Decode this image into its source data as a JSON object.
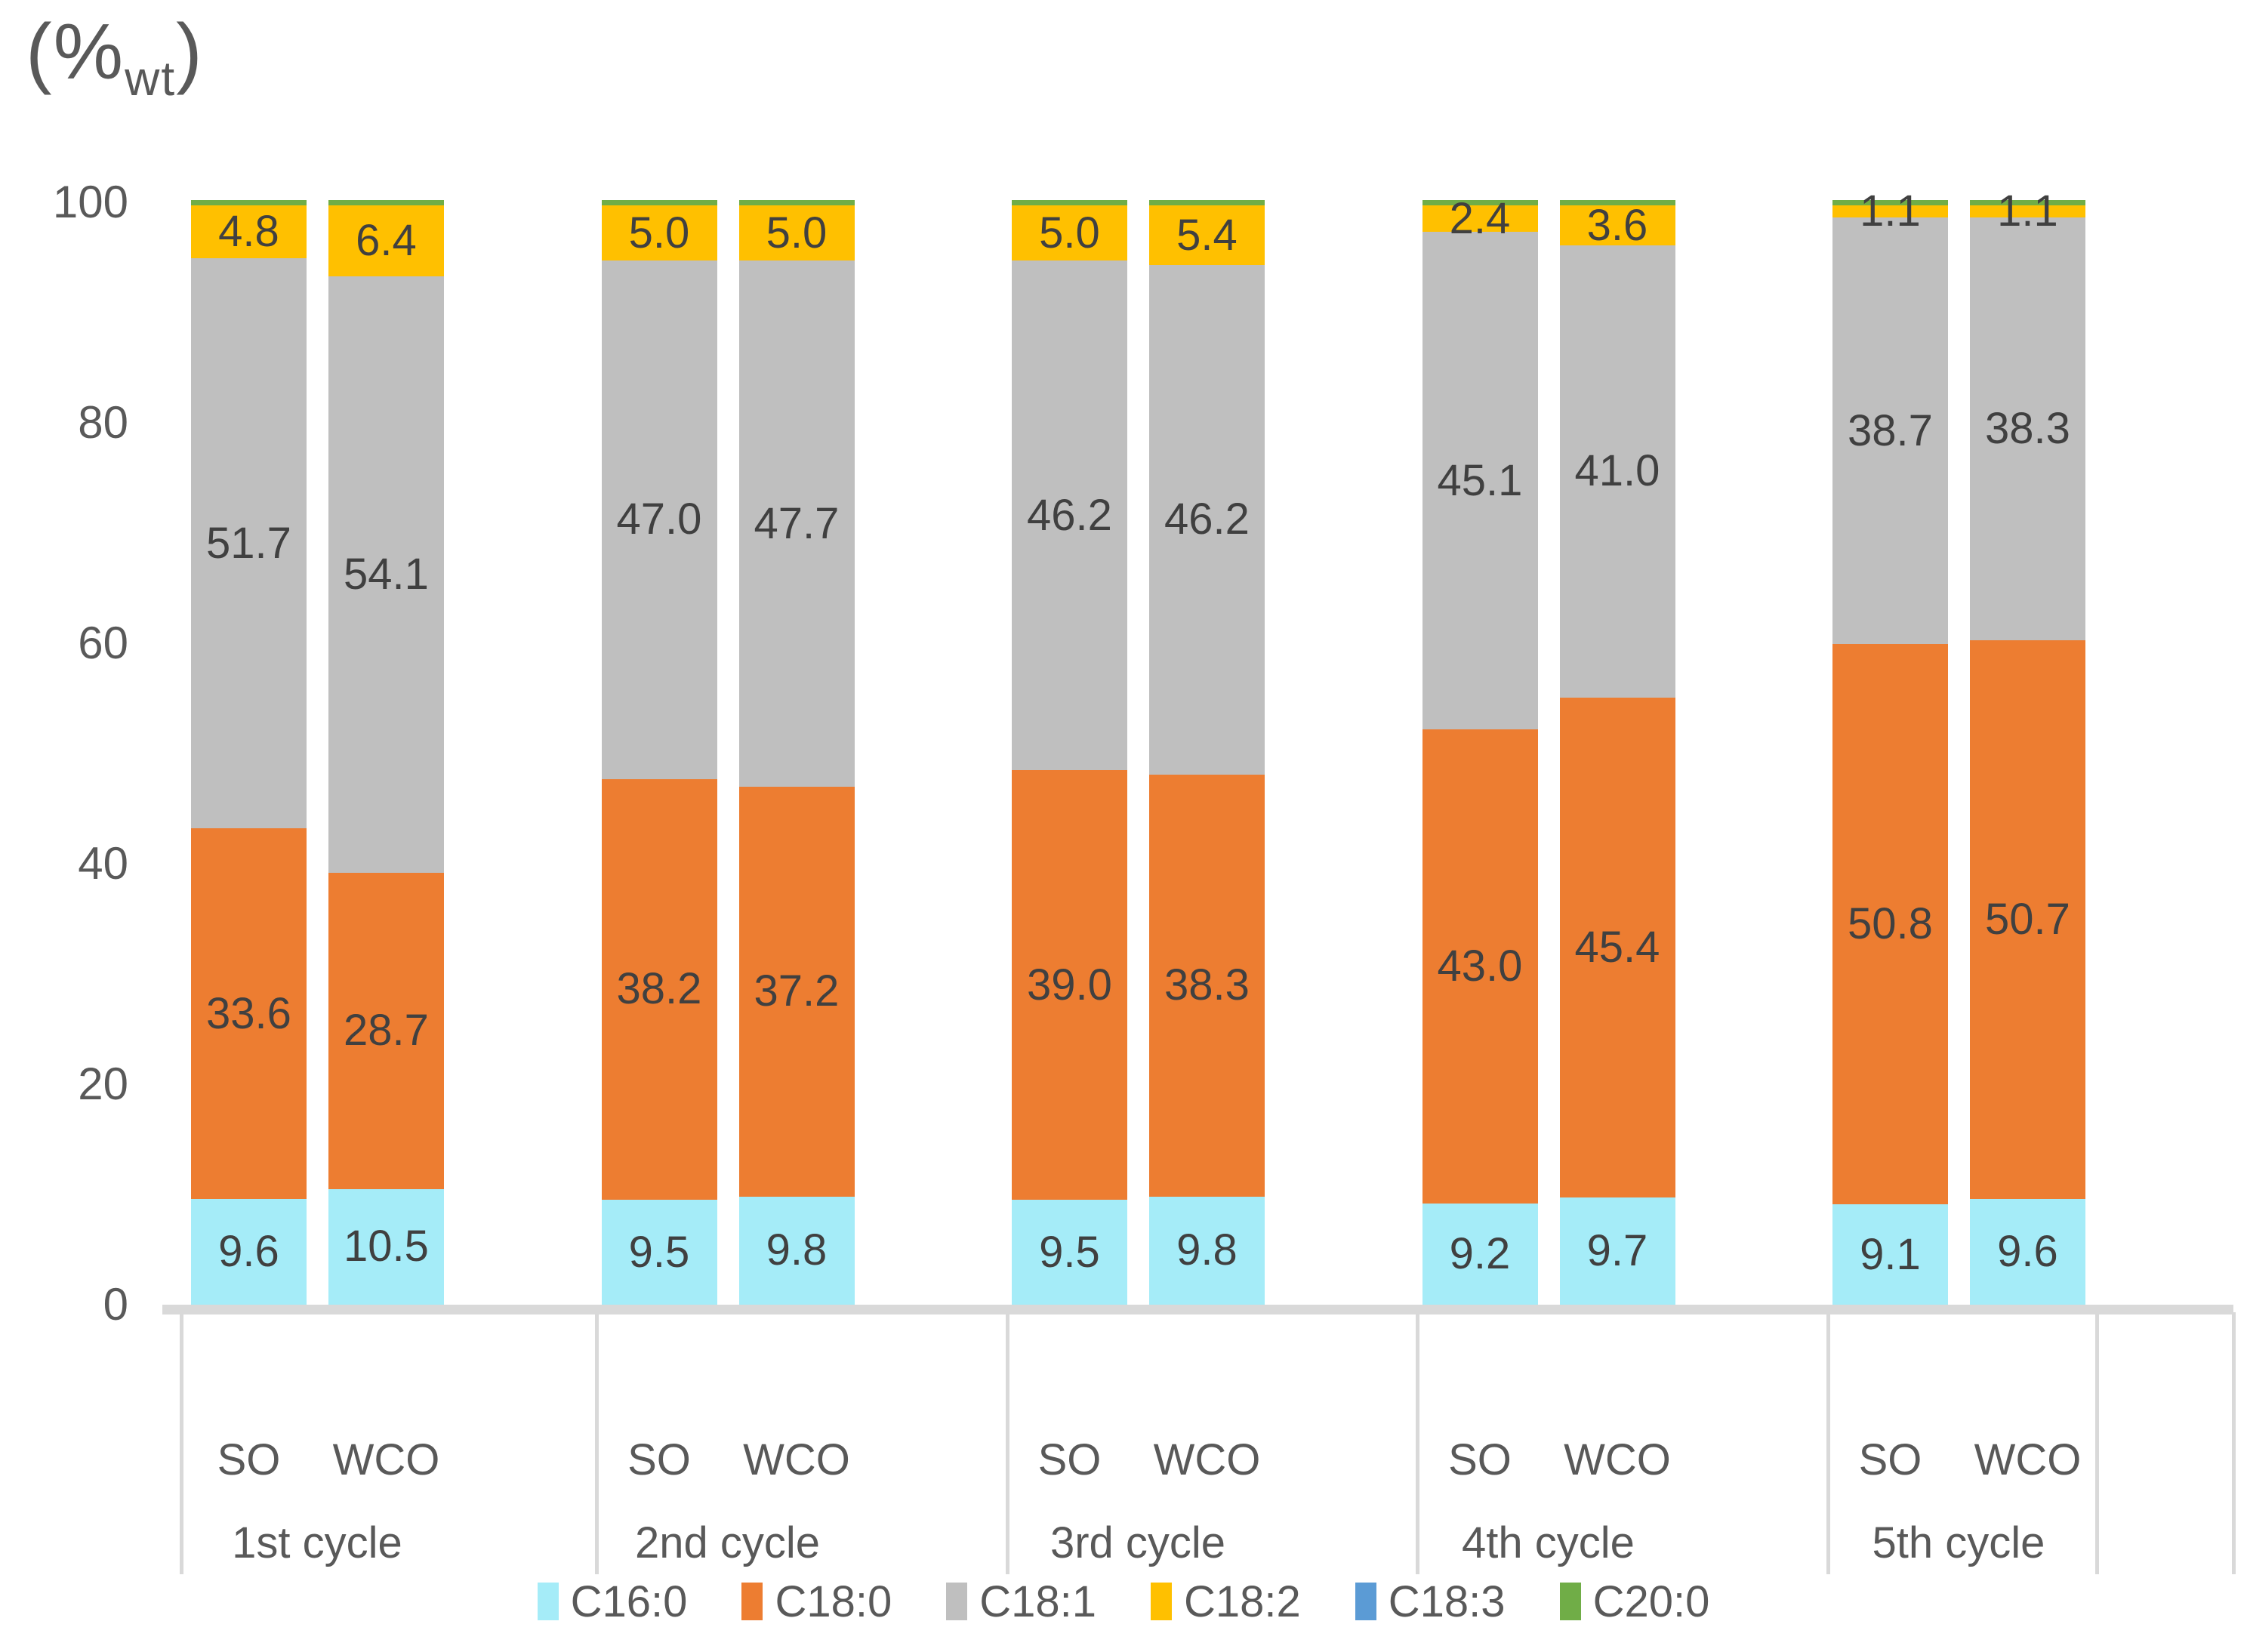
{
  "axis_title": {
    "prefix": "(%",
    "subscript": "wt",
    "suffix": ")"
  },
  "y_axis": {
    "tick_labels": [
      "100",
      "80",
      "60",
      "40",
      "20",
      "0"
    ],
    "range": [
      0,
      100
    ]
  },
  "x_axis": {
    "sub_category_labels": [
      "SO",
      "WCO"
    ],
    "cycle_labels": [
      "1st cycle",
      "2nd cycle",
      "3rd cycle",
      "4th cycle",
      "5th cycle"
    ]
  },
  "colors": {
    "text_dark": "#404040",
    "text_axis": "#595959",
    "grid_border": "#d9d9d9"
  },
  "chart_data": {
    "type": "bar",
    "stacked": true,
    "value_unit": "%wt",
    "title": "(%wt)",
    "ylim": [
      0,
      100
    ],
    "grid": false,
    "legend_position": "bottom",
    "categories": [
      "1st cycle",
      "2nd cycle",
      "3rd cycle",
      "4th cycle",
      "5th cycle"
    ],
    "sub_categories": [
      "SO",
      "WCO"
    ],
    "series": [
      {
        "name": "C16:0",
        "color": "#a5ecf8",
        "show_labels": true,
        "values": [
          [
            9.6,
            10.5
          ],
          [
            9.5,
            9.8
          ],
          [
            9.5,
            9.8
          ],
          [
            9.2,
            9.7
          ],
          [
            9.1,
            9.6
          ]
        ]
      },
      {
        "name": "C18:0",
        "color": "#ed7d31",
        "show_labels": true,
        "values": [
          [
            33.6,
            28.7
          ],
          [
            38.2,
            37.2
          ],
          [
            39.0,
            38.3
          ],
          [
            43.0,
            45.4
          ],
          [
            50.8,
            50.7
          ]
        ]
      },
      {
        "name": "C18:1",
        "color": "#bfbfbf",
        "show_labels": true,
        "values": [
          [
            51.7,
            54.1
          ],
          [
            47.0,
            47.7
          ],
          [
            46.2,
            46.2
          ],
          [
            45.1,
            41.0
          ],
          [
            38.7,
            38.3
          ]
        ]
      },
      {
        "name": "C18:2",
        "color": "#ffc000",
        "show_labels": true,
        "values": [
          [
            4.8,
            6.4
          ],
          [
            5.0,
            5.0
          ],
          [
            5.0,
            5.4
          ],
          [
            2.4,
            3.6
          ],
          [
            1.1,
            1.1
          ]
        ]
      },
      {
        "name": "C18:3",
        "color": "#5b9bd5",
        "show_labels": false,
        "values": [
          [
            0,
            0
          ],
          [
            0,
            0
          ],
          [
            0,
            0
          ],
          [
            0,
            0
          ],
          [
            0,
            0
          ]
        ]
      },
      {
        "name": "C20:0",
        "color": "#70ad47",
        "show_labels": false,
        "values": [
          [
            0.5,
            0.5
          ],
          [
            0.5,
            0.5
          ],
          [
            0.5,
            0.5
          ],
          [
            0.5,
            0.5
          ],
          [
            0.5,
            0.5
          ]
        ]
      }
    ]
  }
}
